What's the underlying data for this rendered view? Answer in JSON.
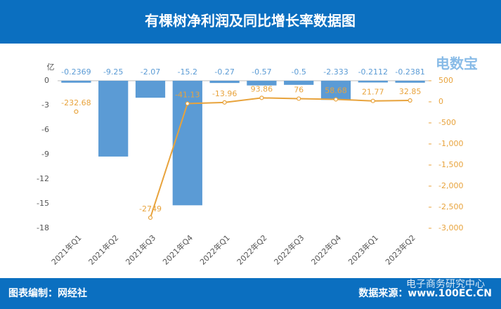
{
  "chart_data": {
    "type": "bar",
    "title": "有棵树净利润及同比增长率数据图",
    "y_unit": "亿",
    "footer_left": "图表编制：网经社",
    "footer_right": "数据来源：www.100EC.CN",
    "watermark": "电子商务研究中心",
    "logo": "电数宝",
    "categories": [
      "2021年Q1",
      "2021年Q2",
      "2021年Q3",
      "2021年Q4",
      "2022年Q1",
      "2022年Q2",
      "2022年Q3",
      "2022年Q4",
      "2023年Q1",
      "2023年Q2"
    ],
    "series": [
      {
        "name": "净利润",
        "type": "bar",
        "color": "#5b9bd5",
        "values": [
          -0.2369,
          -9.25,
          -2.07,
          -15.2,
          -0.27,
          -0.57,
          -0.5,
          -2.333,
          -0.2112,
          -0.2381
        ]
      },
      {
        "name": "同比增长率",
        "type": "line",
        "axis": "y2",
        "color": "#e8a33c",
        "values": [
          -232.68,
          null,
          -2749,
          -41.13,
          -13.96,
          93.86,
          76,
          58.68,
          21.77,
          32.85
        ]
      }
    ],
    "ylim": [
      -18,
      0
    ],
    "yticks": [
      0,
      -3,
      -6,
      -9,
      -12,
      -15,
      -18
    ],
    "y2lim": [
      -3000,
      500
    ],
    "y2ticks": [
      500,
      0,
      -500,
      {
        "value": -1000,
        "label": "-1,000"
      },
      {
        "value": -1500,
        "label": "-1,500"
      },
      {
        "value": -2000,
        "label": "-2,000"
      },
      {
        "value": -2500,
        "label": "-2,500"
      },
      {
        "value": -3000,
        "label": "-3,000"
      }
    ]
  }
}
